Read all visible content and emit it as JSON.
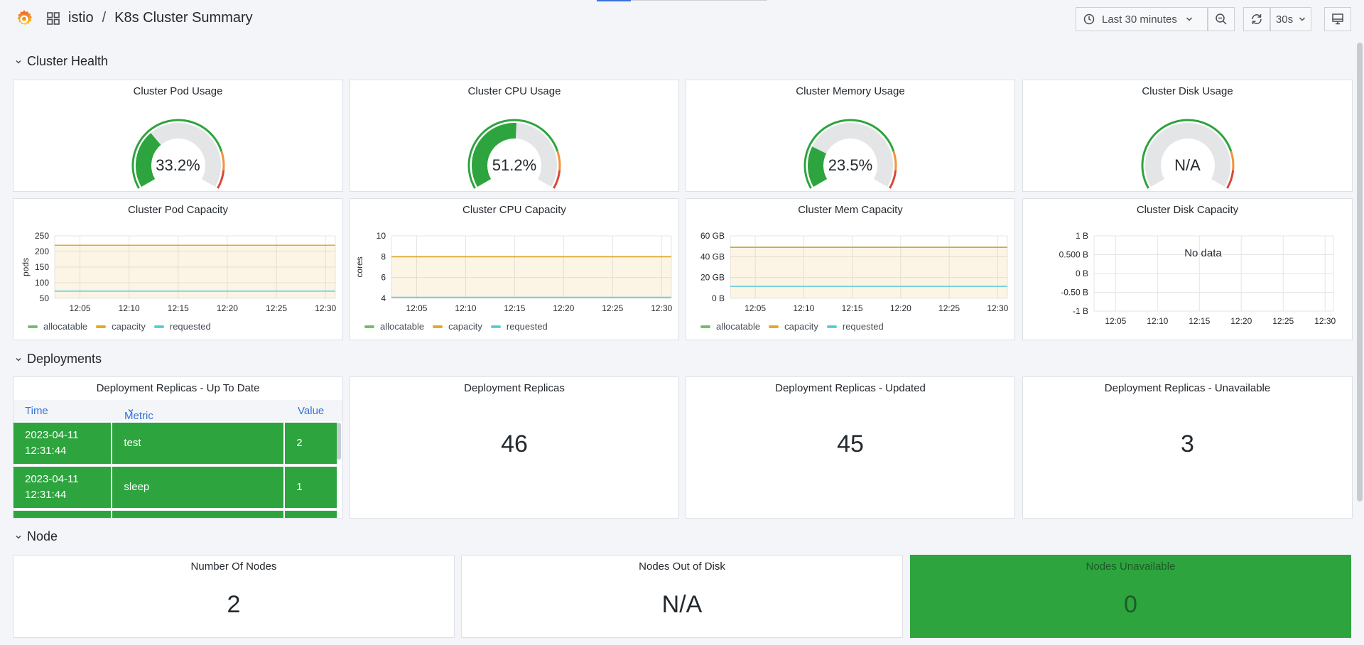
{
  "header": {
    "folder": "istio",
    "separator": "/",
    "dashboard_title": "K8s Cluster Summary",
    "time_range_label": "Last 30 minutes",
    "refresh_interval": "30s"
  },
  "sections": {
    "cluster_health": "Cluster Health",
    "deployments": "Deployments",
    "node": "Node"
  },
  "gauges": [
    {
      "title": "Cluster Pod Usage",
      "value_text": "33.2%",
      "value": 33.2
    },
    {
      "title": "Cluster CPU Usage",
      "value_text": "51.2%",
      "value": 51.2
    },
    {
      "title": "Cluster Memory Usage",
      "value_text": "23.5%",
      "value": 23.5
    },
    {
      "title": "Cluster Disk Usage",
      "value_text": "N/A",
      "value": null
    }
  ],
  "capacity_charts": [
    {
      "title": "Cluster Pod Capacity",
      "ylabel": "pods",
      "yticks": [
        "250",
        "200",
        "150",
        "100",
        "50"
      ],
      "xticks": [
        "12:05",
        "12:10",
        "12:15",
        "12:20",
        "12:25",
        "12:30"
      ]
    },
    {
      "title": "Cluster CPU Capacity",
      "ylabel": "cores",
      "yticks": [
        "10",
        "8",
        "6",
        "4"
      ],
      "xticks": [
        "12:05",
        "12:10",
        "12:15",
        "12:20",
        "12:25",
        "12:30"
      ]
    },
    {
      "title": "Cluster Mem Capacity",
      "ylabel": "",
      "yticks": [
        "60 GB",
        "40 GB",
        "20 GB",
        "0 B"
      ],
      "xticks": [
        "12:05",
        "12:10",
        "12:15",
        "12:20",
        "12:25",
        "12:30"
      ]
    },
    {
      "title": "Cluster Disk Capacity",
      "ylabel": "",
      "yticks": [
        "1 B",
        "0.500 B",
        "0 B",
        "-0.50 B",
        "-1 B"
      ],
      "xticks": [
        "12:05",
        "12:10",
        "12:15",
        "12:20",
        "12:25",
        "12:30"
      ],
      "no_data": "No data"
    }
  ],
  "legend": {
    "allocatable": "allocatable",
    "capacity": "capacity",
    "requested": "requested"
  },
  "colors": {
    "green": "#2da43e",
    "yellow": "#e5a92a",
    "cyan": "#5ecbdc",
    "orange": "#f2923a",
    "red": "#d44a3a",
    "blue": "#3274d9",
    "allocatable_legend": "#73bf69"
  },
  "chart_data": [
    {
      "type": "line",
      "title": "Cluster Pod Capacity",
      "ylabel": "pods",
      "ylim": [
        50,
        250
      ],
      "x": [
        "12:05",
        "12:10",
        "12:15",
        "12:20",
        "12:25",
        "12:30"
      ],
      "series": [
        {
          "name": "allocatable",
          "values": [
            220,
            220,
            220,
            220,
            220,
            220
          ]
        },
        {
          "name": "capacity",
          "values": [
            220,
            220,
            220,
            220,
            220,
            220
          ]
        },
        {
          "name": "requested",
          "values": [
            73,
            73,
            73,
            73,
            73,
            73
          ]
        }
      ]
    },
    {
      "type": "line",
      "title": "Cluster CPU Capacity",
      "ylabel": "cores",
      "ylim": [
        4,
        10
      ],
      "x": [
        "12:05",
        "12:10",
        "12:15",
        "12:20",
        "12:25",
        "12:30"
      ],
      "series": [
        {
          "name": "allocatable",
          "values": [
            8,
            8,
            8,
            8,
            8,
            8
          ]
        },
        {
          "name": "capacity",
          "values": [
            8,
            8,
            8,
            8,
            8,
            8
          ]
        },
        {
          "name": "requested",
          "values": [
            4.1,
            4.1,
            4.1,
            4.1,
            4.1,
            4.1
          ]
        }
      ]
    },
    {
      "type": "line",
      "title": "Cluster Mem Capacity",
      "ylabel": "",
      "ylim": [
        0,
        60
      ],
      "x": [
        "12:05",
        "12:10",
        "12:15",
        "12:20",
        "12:25",
        "12:30"
      ],
      "series": [
        {
          "name": "allocatable",
          "values": [
            49,
            49,
            49,
            49,
            49,
            49
          ]
        },
        {
          "name": "capacity",
          "values": [
            49,
            49,
            49,
            49,
            49,
            49
          ]
        },
        {
          "name": "requested",
          "values": [
            11.5,
            11.5,
            11.5,
            11.5,
            11.5,
            11.5
          ]
        }
      ]
    }
  ],
  "deployments": {
    "table_title": "Deployment Replicas - Up To Date",
    "columns": [
      "Time",
      "Metric",
      "Value"
    ],
    "rows": [
      {
        "time": "2023-04-11 12:31:44",
        "metric": "test",
        "value": "2"
      },
      {
        "time": "2023-04-11 12:31:44",
        "metric": "sleep",
        "value": "1"
      }
    ],
    "stats": [
      {
        "title": "Deployment Replicas",
        "value": "46"
      },
      {
        "title": "Deployment Replicas - Updated",
        "value": "45"
      },
      {
        "title": "Deployment Replicas - Unavailable",
        "value": "3"
      }
    ]
  },
  "node": {
    "stats": [
      {
        "title": "Number Of Nodes",
        "value": "2"
      },
      {
        "title": "Nodes Out of Disk",
        "value": "N/A"
      },
      {
        "title": "Nodes Unavailable",
        "value": "0"
      }
    ]
  }
}
